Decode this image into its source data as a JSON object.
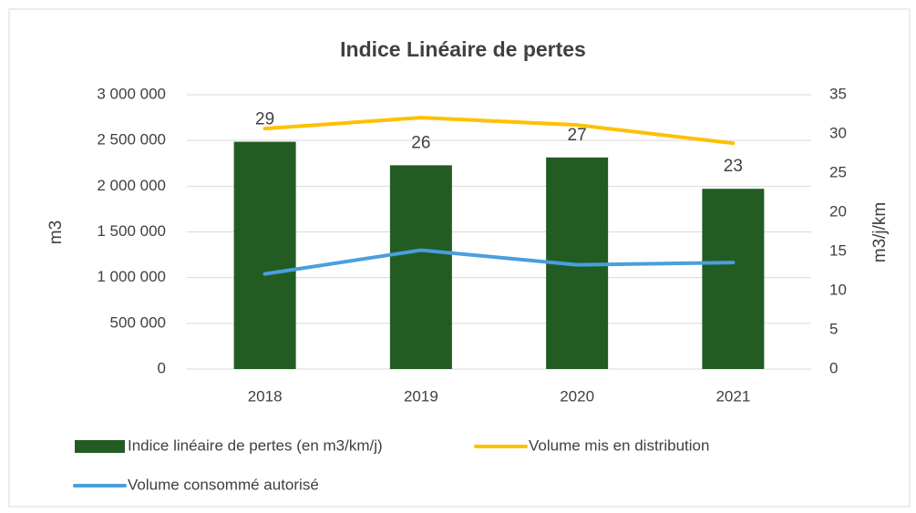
{
  "chart_data": {
    "type": "combo",
    "title": "Indice Linéaire de pertes",
    "y_label": "m3",
    "y2_label": "m3/j/km",
    "categories": [
      "2018",
      "2019",
      "2020",
      "2021"
    ],
    "series": [
      {
        "name": "Indice linéaire de pertes (en m3/km/j)",
        "type": "bar",
        "axis": "y2",
        "color": "#235c23",
        "values": [
          29,
          26,
          27,
          23
        ]
      },
      {
        "name": "Volume mis en distribution",
        "type": "line",
        "axis": "y",
        "color": "#ffc000",
        "values": [
          2630000,
          2750000,
          2670000,
          2470000
        ]
      },
      {
        "name": "Volume consommé autorisé",
        "type": "line",
        "axis": "y",
        "color": "#4a9fdc",
        "values": [
          1040000,
          1300000,
          1140000,
          1165000
        ]
      }
    ],
    "ylim": [
      0,
      3000000
    ],
    "yticks": [
      0,
      {
        "value": 500000,
        "label": "500 000"
      },
      {
        "value": 1000000,
        "label": "1 000 000"
      },
      {
        "value": 1500000,
        "label": "1 500 000"
      },
      {
        "value": 2000000,
        "label": "2 000 000"
      },
      {
        "value": 2500000,
        "label": "2 500 000"
      },
      {
        "value": 3000000,
        "label": "3 000 000"
      }
    ],
    "y2lim": [
      0,
      35
    ],
    "y2ticks": [
      0,
      5,
      10,
      15,
      20,
      25,
      30,
      35
    ],
    "grid": true
  }
}
